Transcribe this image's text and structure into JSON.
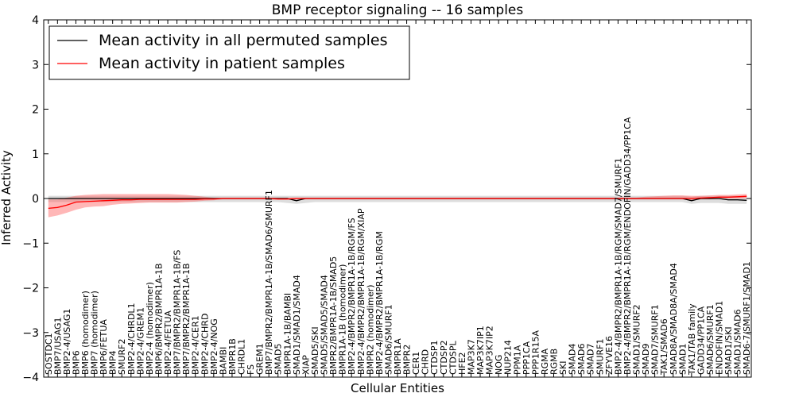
{
  "chart_data": {
    "type": "line",
    "title": "BMP receptor signaling -- 16 samples",
    "xlabel": "Cellular Entities",
    "ylabel": "Inferred Activity",
    "ylim": [
      -4,
      4
    ],
    "yticks": [
      -4,
      -3,
      -2,
      -1,
      0,
      1,
      2,
      3,
      4
    ],
    "grid": false,
    "legend_position": "top-left",
    "categories": [
      "SOSTDC1",
      "BMP7/USAG1",
      "BMP2-4/USAG1",
      "BMP6",
      "BMP6 (homodimer)",
      "BMP7 (homodimer)",
      "BMP6/FETUA",
      "BMP4",
      "SMURF2",
      "BMP2-4/CHRDL1",
      "BMP2-4/GREM1",
      "BMP2-4 (homodimer)",
      "BMP6/BMPR2/BMPR1A-1B",
      "BMP2-4/FETUA",
      "BMP7/BMPR2/BMPR1A-1B/FS",
      "BMP7/BMPR2/BMPR1A-1B",
      "BMP2-4/CER1",
      "BMP2-4/CHRD",
      "BMP2-4/NOG",
      "BAMBI",
      "BMPR1B",
      "CHRDL1",
      "FS",
      "GREM1",
      "BMP7/BMPR2/BMPR1A-1B/SMAD6/SMURF1",
      "SMAD5",
      "BMPR1A-1B/BAMBI",
      "SMAD1/SMAD1/SMAD4",
      "XIAP",
      "SMAD5/SKI",
      "SMAD5/SMAD5/SMAD4",
      "BMPR2/BMPR1A-1B/SMAD5",
      "BMPR1A-1B (homodimer)",
      "BMP2-4/BMPR2/BMPR1A-1B/RGM/FS",
      "BMP2-4/BMPR2/BMPR1A-1B/RGM/XIAP",
      "BMPR2 (homodimer)",
      "BMP2-4/BMPR2/BMPR1A-1B/RGM",
      "SMAD6/SMURF1",
      "BMPR1A",
      "BMPR2",
      "CER1",
      "CHRD",
      "CTDSP1",
      "CTDSP2",
      "CTDSPL",
      "HFE2",
      "MAP3K7",
      "MAP3K7IP1",
      "MAP3K7IP2",
      "NOG",
      "NUP214",
      "PPM1A",
      "PPP1CA",
      "PPP1R15A",
      "RGMA",
      "RGMB",
      "SKI",
      "SMAD4",
      "SMAD6",
      "SMAD7",
      "SMURF1",
      "ZFYVE16",
      "BMP2-4/BMPR2/BMPR1A-1B/RGM/SMAD7/SMURF1",
      "BMP2-4/BMPR2/BMPR1A-1B/RGM/ENDOFIN/GADD34/PP1CA",
      "SMAD1/SMURF2",
      "SMAD9",
      "SMAD7/SMURF1",
      "TAK1/SMAD6",
      "SMAD8A/SMAD8A/SMAD4",
      "SMAD1",
      "TAK1/TAB family",
      "GADD34/PP1CA",
      "SMAD6/SMURF1",
      "ENDOFIN/SMAD1",
      "SMAD1/SKI",
      "SMAD1/SMAD6",
      "SMAD6-7/SMURF1/SMAD1"
    ],
    "series": [
      {
        "name": "Mean activity in all permuted samples",
        "color": "#000000",
        "values": [
          0,
          0,
          0,
          0,
          0,
          0,
          0,
          0,
          0,
          0,
          0,
          0,
          0,
          0,
          0,
          0,
          0,
          0,
          0,
          0,
          0,
          0,
          0,
          0,
          0,
          0,
          0,
          -0.05,
          0,
          0,
          0,
          0,
          0,
          0,
          0,
          0,
          0,
          0,
          0,
          0,
          0,
          0,
          0,
          0,
          0,
          0,
          0,
          0,
          0,
          0,
          0,
          0,
          0,
          0,
          0,
          0,
          0,
          0,
          0,
          0,
          0,
          0,
          0,
          0,
          0,
          0,
          0,
          0,
          0,
          0,
          -0.05,
          0,
          0,
          0,
          -0.03,
          -0.03,
          -0.04
        ],
        "band": {
          "lower": [
            -0.08,
            -0.08,
            -0.08,
            -0.08,
            -0.08,
            -0.08,
            -0.08,
            -0.08,
            -0.08,
            -0.08,
            -0.08,
            -0.08,
            -0.08,
            -0.08,
            -0.08,
            -0.08,
            -0.08,
            -0.08,
            -0.08,
            -0.08,
            -0.08,
            -0.08,
            -0.08,
            -0.08,
            -0.08,
            -0.08,
            -0.1,
            -0.12,
            -0.1,
            -0.08,
            -0.08,
            -0.08,
            -0.08,
            -0.08,
            -0.08,
            -0.08,
            -0.08,
            -0.08,
            -0.08,
            -0.08,
            -0.08,
            -0.08,
            -0.08,
            -0.08,
            -0.08,
            -0.08,
            -0.08,
            -0.08,
            -0.08,
            -0.08,
            -0.08,
            -0.08,
            -0.08,
            -0.08,
            -0.08,
            -0.08,
            -0.08,
            -0.08,
            -0.08,
            -0.08,
            -0.08,
            -0.08,
            -0.08,
            -0.08,
            -0.08,
            -0.08,
            -0.08,
            -0.08,
            -0.08,
            -0.08,
            -0.12,
            -0.1,
            -0.1,
            -0.1,
            -0.12,
            -0.12,
            -0.12
          ],
          "upper": [
            0.06,
            0.06,
            0.06,
            0.06,
            0.06,
            0.06,
            0.06,
            0.06,
            0.06,
            0.06,
            0.06,
            0.06,
            0.06,
            0.06,
            0.06,
            0.06,
            0.06,
            0.06,
            0.06,
            0.06,
            0.06,
            0.06,
            0.06,
            0.06,
            0.06,
            0.06,
            0.06,
            0.06,
            0.06,
            0.06,
            0.06,
            0.06,
            0.06,
            0.06,
            0.06,
            0.06,
            0.06,
            0.06,
            0.06,
            0.06,
            0.06,
            0.06,
            0.06,
            0.06,
            0.06,
            0.06,
            0.06,
            0.06,
            0.06,
            0.06,
            0.06,
            0.06,
            0.06,
            0.06,
            0.06,
            0.06,
            0.06,
            0.06,
            0.06,
            0.06,
            0.06,
            0.06,
            0.06,
            0.06,
            0.06,
            0.06,
            0.06,
            0.06,
            0.06,
            0.06,
            0.04,
            0.06,
            0.06,
            0.06,
            0.06,
            0.06,
            0.06
          ]
        }
      },
      {
        "name": "Mean activity in patient samples",
        "color": "#ff0000",
        "values": [
          -0.22,
          -0.2,
          -0.15,
          -0.08,
          -0.07,
          -0.06,
          -0.05,
          -0.04,
          -0.03,
          -0.03,
          -0.02,
          -0.02,
          -0.02,
          -0.02,
          -0.02,
          -0.02,
          -0.02,
          -0.01,
          -0.01,
          0,
          0,
          0,
          0,
          0,
          0,
          -0.01,
          -0.01,
          0,
          0,
          0,
          0,
          0,
          0,
          0,
          0,
          0,
          0,
          0,
          0,
          0,
          0,
          0,
          0,
          0,
          0,
          0,
          0,
          0,
          0,
          0,
          0,
          0,
          0,
          0,
          0,
          0,
          0,
          0,
          0,
          0,
          0,
          0,
          0,
          0,
          0,
          0,
          0,
          0,
          0,
          0,
          0,
          0.01,
          0.02,
          0.03,
          0.03,
          0.04,
          0.05
        ],
        "band": {
          "lower": [
            -0.42,
            -0.38,
            -0.32,
            -0.25,
            -0.2,
            -0.18,
            -0.17,
            -0.14,
            -0.12,
            -0.11,
            -0.1,
            -0.09,
            -0.09,
            -0.09,
            -0.09,
            -0.08,
            -0.07,
            -0.05,
            -0.04,
            -0.02,
            -0.02,
            -0.02,
            -0.02,
            -0.02,
            -0.02,
            -0.03,
            -0.03,
            -0.02,
            -0.02,
            -0.02,
            -0.02,
            -0.02,
            -0.02,
            -0.02,
            -0.02,
            -0.02,
            -0.02,
            -0.02,
            -0.02,
            -0.02,
            -0.02,
            -0.02,
            -0.02,
            -0.02,
            -0.02,
            -0.02,
            -0.02,
            -0.02,
            -0.02,
            -0.02,
            -0.02,
            -0.02,
            -0.02,
            -0.02,
            -0.02,
            -0.02,
            -0.02,
            -0.02,
            -0.02,
            -0.02,
            -0.02,
            -0.02,
            -0.02,
            -0.02,
            -0.02,
            -0.02,
            -0.02,
            -0.02,
            -0.02,
            -0.02,
            -0.04,
            -0.02,
            -0.02,
            -0.01,
            0,
            0,
            0
          ],
          "upper": [
            -0.02,
            -0.02,
            0.02,
            0.06,
            0.08,
            0.09,
            0.1,
            0.1,
            0.1,
            0.1,
            0.1,
            0.1,
            0.1,
            0.1,
            0.09,
            0.08,
            0.06,
            0.04,
            0.02,
            0.02,
            0.02,
            0.02,
            0.02,
            0.02,
            0.02,
            0.02,
            0.02,
            0.02,
            0.02,
            0.02,
            0.02,
            0.02,
            0.02,
            0.02,
            0.02,
            0.02,
            0.02,
            0.02,
            0.02,
            0.02,
            0.02,
            0.02,
            0.02,
            0.02,
            0.02,
            0.02,
            0.02,
            0.02,
            0.02,
            0.02,
            0.02,
            0.02,
            0.02,
            0.02,
            0.02,
            0.02,
            0.02,
            0.02,
            0.02,
            0.02,
            0.02,
            0.02,
            0.02,
            0.02,
            0.02,
            0.04,
            0.05,
            0.06,
            0.07,
            0.07,
            0.06,
            0.06,
            0.07,
            0.08,
            0.08,
            0.09,
            0.1
          ]
        }
      }
    ]
  }
}
